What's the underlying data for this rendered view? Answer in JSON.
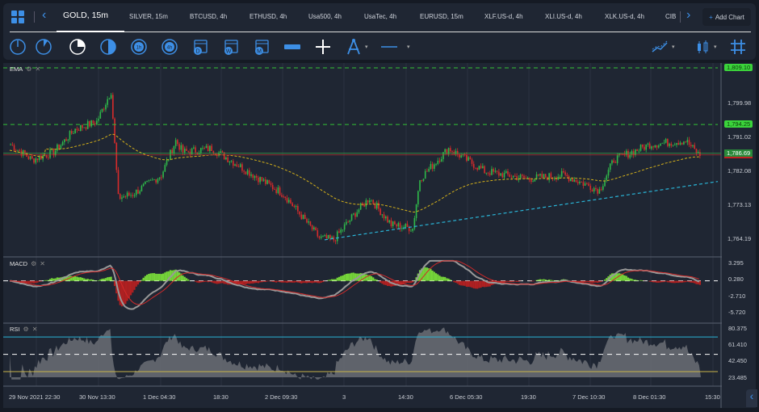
{
  "tabs": [
    {
      "label": "GOLD, 15m",
      "active": true
    },
    {
      "label": "SILVER, 15m"
    },
    {
      "label": "BTCUSD, 4h"
    },
    {
      "label": "ETHUSD, 4h"
    },
    {
      "label": "Usa500, 4h"
    },
    {
      "label": "UsaTec, 4h"
    },
    {
      "label": "EURUSD, 15m"
    },
    {
      "label": "XLF.US-d, 4h"
    },
    {
      "label": "XLI.US-d, 4h"
    },
    {
      "label": "XLK.US-d, 4h"
    },
    {
      "label": "CIB"
    }
  ],
  "add_chart": "Add Chart",
  "toolbar_icons": [
    "clock-1m-icon",
    "clock-5m-icon",
    "clock-15m-icon",
    "clock-30m-icon",
    "1h-icon",
    "4h-icon",
    "calendar-d-icon",
    "calendar-w-icon",
    "calendar-m-icon",
    "ruler-icon",
    "crosshair-icon",
    "compass-icon",
    "line-style-icon",
    "indicators-icon",
    "chart-type-icon",
    "grid-icon"
  ],
  "calendar_letters": [
    "D",
    "W",
    "M"
  ],
  "hour_labels": [
    "1h",
    "4h"
  ],
  "panels": {
    "main": "EMA",
    "macd": "MACD",
    "rsi": "RSI"
  },
  "colors": {
    "up": "#2fb84a",
    "down": "#d62b2b",
    "ema": "#d6b21a",
    "hline": "#35c435",
    "trend": "#2ab4d6",
    "bg": "#1f2633"
  },
  "chart_data": {
    "type": "candlestick",
    "symbol": "GOLD",
    "timeframe": "15m",
    "price_axis": [
      "1,799.98",
      "1,791.02",
      "1,782.08",
      "1,773.13",
      "1,764.19"
    ],
    "price_labels": {
      "high_line": "1,809.10",
      "mid_line": "1,794.25",
      "last": "1,786.69"
    },
    "ylim": [
      1761,
      1810
    ],
    "close_path": [
      [
        0,
        1789
      ],
      [
        3,
        1785
      ],
      [
        6,
        1787
      ],
      [
        9,
        1793
      ],
      [
        12,
        1795
      ],
      [
        14,
        1803
      ],
      [
        15,
        1775
      ],
      [
        17,
        1776
      ],
      [
        21,
        1781
      ],
      [
        23,
        1790
      ],
      [
        24,
        1787
      ],
      [
        28,
        1788
      ],
      [
        33,
        1782
      ],
      [
        38,
        1776
      ],
      [
        43,
        1764.5
      ],
      [
        45,
        1764
      ],
      [
        48,
        1771
      ],
      [
        50,
        1775
      ],
      [
        53,
        1768
      ],
      [
        56,
        1767
      ],
      [
        57,
        1780
      ],
      [
        61,
        1788
      ],
      [
        66,
        1782
      ],
      [
        72,
        1780
      ],
      [
        77,
        1781
      ],
      [
        82,
        1777
      ],
      [
        84,
        1785
      ],
      [
        89,
        1789
      ],
      [
        94,
        1790
      ],
      [
        96,
        1786
      ]
    ],
    "macd_axis": [
      "3.295",
      "0.280",
      "-2.710",
      "-5.720"
    ],
    "rsi_axis": [
      "80.375",
      "61.410",
      "42.450",
      "23.485"
    ],
    "x_labels": [
      "29 Nov 2021 22:30",
      "30 Nov 13:30",
      "1 Dec 04:30",
      "18:30",
      "2 Dec 09:30",
      "3",
      "14:30",
      "6 Dec 05:30",
      "19:30",
      "7 Dec 10:30",
      "8 Dec 01:30",
      "15:30"
    ]
  }
}
